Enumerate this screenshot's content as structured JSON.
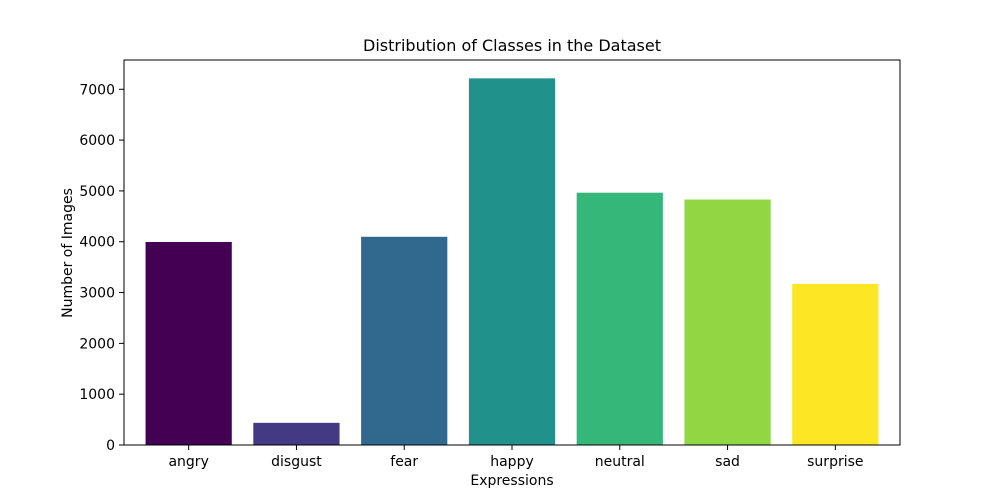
{
  "chart_data": {
    "type": "bar",
    "title": "Distribution of Classes in the Dataset",
    "xlabel": "Expressions",
    "ylabel": "Number of Images",
    "categories": [
      "angry",
      "disgust",
      "fear",
      "happy",
      "neutral",
      "sad",
      "surprise"
    ],
    "values": [
      3995,
      436,
      4097,
      7215,
      4965,
      4830,
      3171
    ],
    "colors": [
      "#440154",
      "#443983",
      "#31688e",
      "#21918c",
      "#35b779",
      "#90d743",
      "#fde725"
    ],
    "ylim": [
      0,
      7576
    ],
    "yticks": [
      0,
      1000,
      2000,
      3000,
      4000,
      5000,
      6000,
      7000
    ],
    "grid": false,
    "legend": false
  }
}
